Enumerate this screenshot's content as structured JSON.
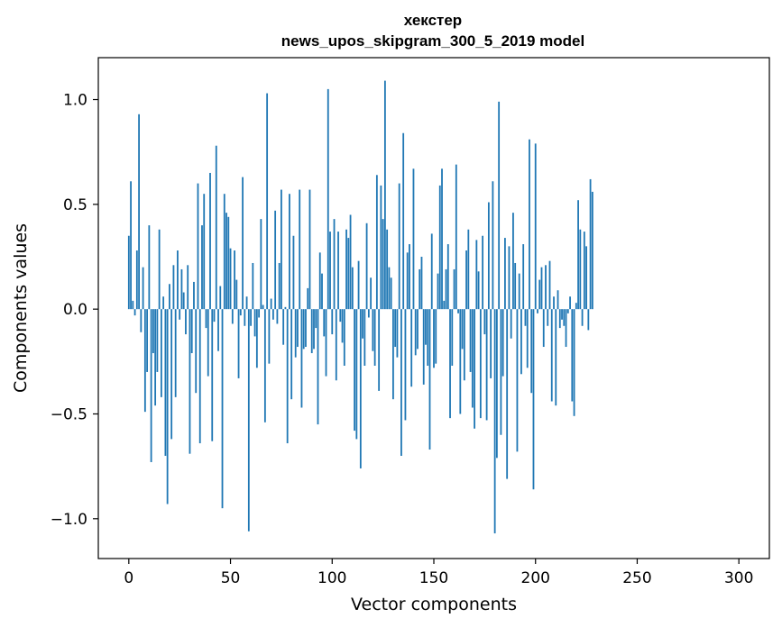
{
  "chart_data": {
    "type": "bar",
    "title_line1": "хекстер",
    "title_line2": "news_upos_skipgram_300_5_2019 model",
    "xlabel": "Vector components",
    "ylabel": "Components values",
    "xlim": [
      -15,
      315
    ],
    "ylim": [
      -1.19,
      1.2
    ],
    "xticks": [
      0,
      50,
      100,
      150,
      200,
      250,
      300
    ],
    "xtick_labels": [
      "0",
      "50",
      "100",
      "150",
      "200",
      "250",
      "300"
    ],
    "yticks": [
      -1.0,
      -0.5,
      0.0,
      0.5,
      1.0
    ],
    "ytick_labels": [
      "−1.0",
      "−0.5",
      "0.0",
      "0.5",
      "1.0"
    ],
    "bar_color": "#1f77b4",
    "grid": false,
    "values": [
      0.35,
      0.61,
      0.04,
      -0.03,
      0.28,
      0.93,
      -0.11,
      0.2,
      -0.49,
      -0.3,
      0.4,
      -0.73,
      -0.21,
      -0.46,
      -0.3,
      0.38,
      -0.42,
      0.06,
      -0.7,
      -0.93,
      0.12,
      -0.62,
      0.21,
      -0.42,
      0.28,
      -0.05,
      0.19,
      0.08,
      -0.12,
      0.21,
      -0.69,
      -0.21,
      0.13,
      -0.4,
      0.6,
      -0.64,
      0.4,
      0.55,
      -0.09,
      -0.32,
      0.65,
      -0.63,
      -0.06,
      0.78,
      -0.2,
      0.11,
      -0.95,
      0.55,
      0.46,
      0.44,
      0.29,
      -0.07,
      0.28,
      0.14,
      -0.33,
      -0.03,
      0.63,
      -0.08,
      0.06,
      -1.06,
      -0.08,
      0.22,
      -0.13,
      -0.28,
      -0.04,
      0.43,
      0.02,
      -0.54,
      1.03,
      -0.26,
      0.05,
      -0.05,
      0.47,
      -0.07,
      0.22,
      0.57,
      -0.17,
      0.01,
      -0.64,
      0.55,
      -0.43,
      0.35,
      -0.23,
      -0.18,
      0.57,
      -0.47,
      -0.19,
      -0.18,
      0.1,
      0.57,
      -0.21,
      -0.19,
      -0.09,
      -0.55,
      0.27,
      0.17,
      -0.13,
      -0.32,
      1.05,
      0.37,
      -0.12,
      0.43,
      -0.34,
      0.37,
      -0.06,
      -0.16,
      -0.27,
      0.38,
      0.34,
      0.45,
      0.2,
      -0.58,
      -0.62,
      0.23,
      -0.76,
      -0.14,
      -0.27,
      0.41,
      -0.04,
      0.15,
      -0.2,
      -0.27,
      0.64,
      -0.39,
      0.59,
      0.43,
      1.09,
      0.38,
      0.2,
      0.15,
      -0.43,
      -0.18,
      -0.23,
      0.6,
      -0.7,
      0.84,
      -0.53,
      0.27,
      0.31,
      -0.37,
      0.67,
      -0.22,
      -0.19,
      0.19,
      0.25,
      -0.36,
      -0.17,
      -0.27,
      -0.67,
      0.36,
      -0.28,
      -0.26,
      0.17,
      0.59,
      0.67,
      0.04,
      0.19,
      0.31,
      -0.52,
      -0.27,
      0.19,
      0.69,
      -0.02,
      -0.5,
      -0.19,
      -0.34,
      0.28,
      0.38,
      -0.3,
      -0.47,
      -0.57,
      0.33,
      0.18,
      -0.52,
      0.35,
      -0.12,
      -0.53,
      0.51,
      -0.33,
      0.61,
      -1.07,
      -0.71,
      0.99,
      -0.6,
      -0.32,
      0.34,
      -0.81,
      0.3,
      -0.14,
      0.46,
      0.22,
      -0.68,
      0.17,
      -0.31,
      0.31,
      -0.08,
      -0.28,
      0.81,
      -0.4,
      -0.86,
      0.79,
      -0.02,
      0.14,
      0.2,
      -0.18,
      0.21,
      -0.08,
      0.23,
      -0.44,
      0.06,
      -0.46,
      0.09,
      -0.09,
      -0.05,
      -0.08,
      -0.18,
      -0.02,
      0.06,
      -0.44,
      -0.51,
      0.03,
      0.52,
      0.38,
      -0.08,
      0.37,
      0.3,
      -0.1,
      0.62,
      0.56
    ]
  }
}
